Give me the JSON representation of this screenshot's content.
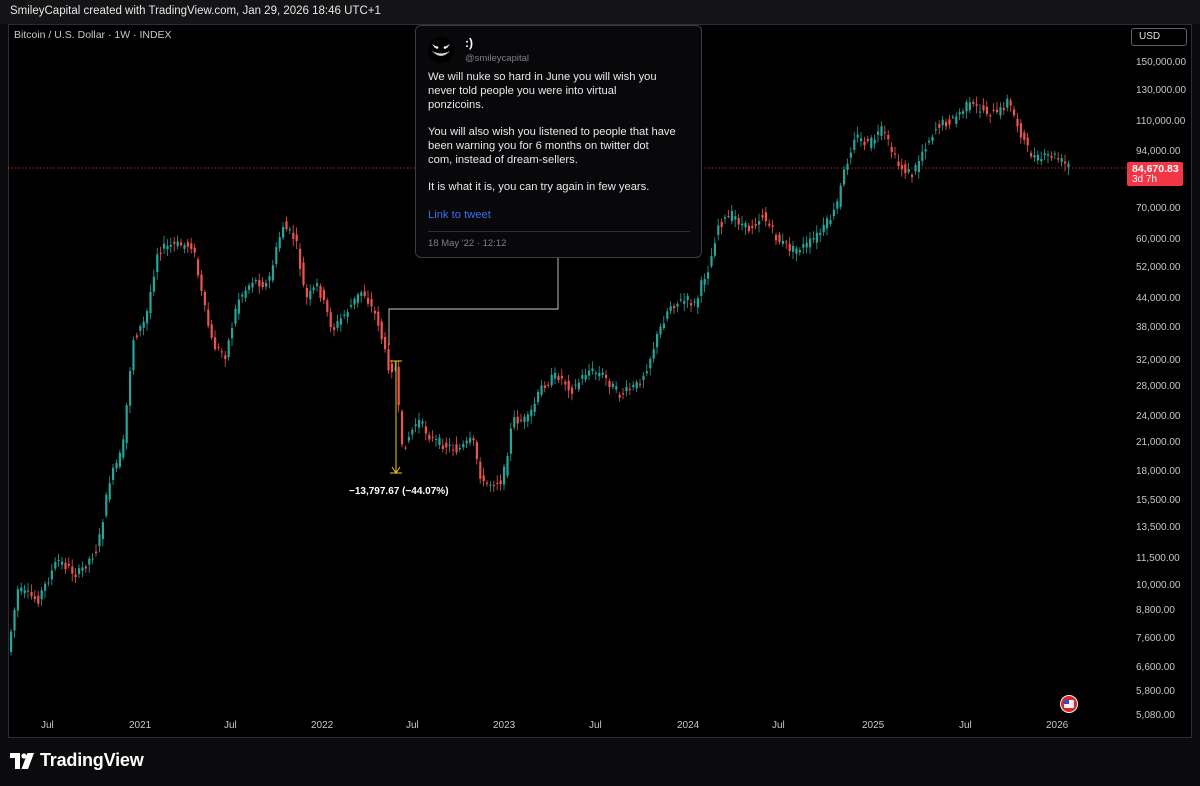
{
  "header": {
    "title": "SmileyCapital created with TradingView.com, Jan 29, 2026 18:46 UTC+1"
  },
  "chart": {
    "symbol": "Bitcoin / U.S. Dollar · 1W · INDEX",
    "currency": "USD",
    "last_price": "84,670.83",
    "countdown": "3d 7h",
    "price_ticks": [
      "150,000.00",
      "130,000.00",
      "110,000.00",
      "94,000.00",
      "70,000.00",
      "60,000.00",
      "52,000.00",
      "44,000.00",
      "38,000.00",
      "32,000.00",
      "28,000.00",
      "24,000.00",
      "21,000.00",
      "18,000.00",
      "15,500.00",
      "13,500.00",
      "11,500.00",
      "10,000.00",
      "8,800.00",
      "7,600.00",
      "6,600.00",
      "5,800.00",
      "5,080.00"
    ],
    "time_ticks": [
      "Jul",
      "2021",
      "Jul",
      "2022",
      "Jul",
      "2023",
      "Jul",
      "2024",
      "Jul",
      "2025",
      "Jul",
      "2026"
    ],
    "measure_label": "−13,797.67 (−44.07%)",
    "colors": {
      "up": "#26a69a",
      "down": "#ef5350",
      "measure": "#f5c518",
      "last_price": "#f23645"
    }
  },
  "tweet": {
    "name": ":)",
    "handle": "@smileycapital",
    "paragraphs": [
      "We will nuke so hard in June you will wish you\nnever told people you were into virtual\nponzicoins.",
      "You will also wish you listened to people that have\nbeen warning you for 6 months on twitter dot\ncom, instead of dream-sellers.",
      "It is what it is, you can try again in few years."
    ],
    "link_label": "Link to tweet",
    "date": "18 May '22 · 12:12"
  },
  "footer": {
    "brand": "TradingView"
  }
}
